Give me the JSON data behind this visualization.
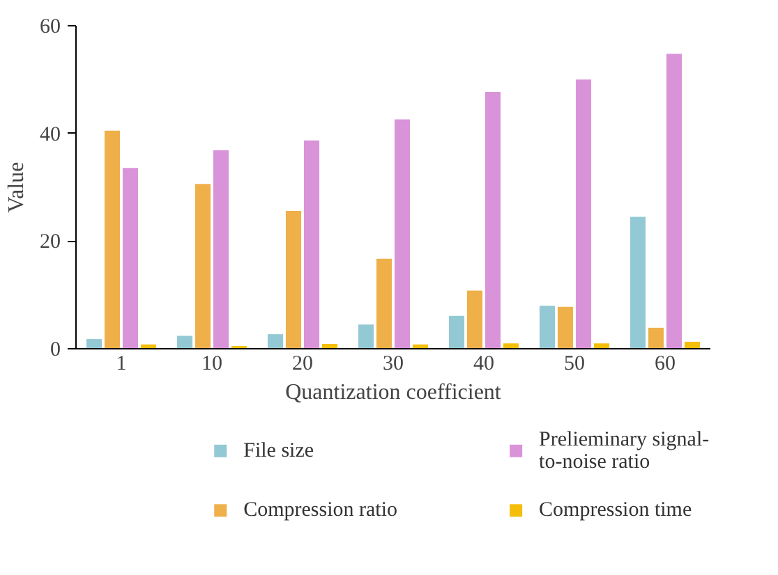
{
  "chart_data": {
    "type": "bar",
    "xlabel": "Quantization coefficient",
    "ylabel": "Value",
    "categories": [
      "1",
      "10",
      "20",
      "30",
      "40",
      "50",
      "60"
    ],
    "series": [
      {
        "name": "File size",
        "color": "#93c9d4",
        "values": [
          1.8,
          2.4,
          2.7,
          4.5,
          6.1,
          8.0,
          24.5
        ]
      },
      {
        "name": "Compression ratio",
        "color": "#efb04a",
        "values": [
          40.5,
          30.6,
          25.6,
          16.7,
          10.8,
          7.8,
          3.9
        ]
      },
      {
        "name": "Prelieminary signal-to-noise ratio",
        "color": "#d994d9",
        "values": [
          33.6,
          36.9,
          38.7,
          42.6,
          47.7,
          50.0,
          54.8
        ]
      },
      {
        "name": "Compression time",
        "color": "#f5be0a",
        "values": [
          0.8,
          0.5,
          0.9,
          0.8,
          1.0,
          1.0,
          1.3
        ]
      }
    ],
    "ylim": [
      0,
      60
    ],
    "yticks": [
      0,
      20,
      40,
      60
    ],
    "grid": false,
    "legend": "bottom"
  }
}
